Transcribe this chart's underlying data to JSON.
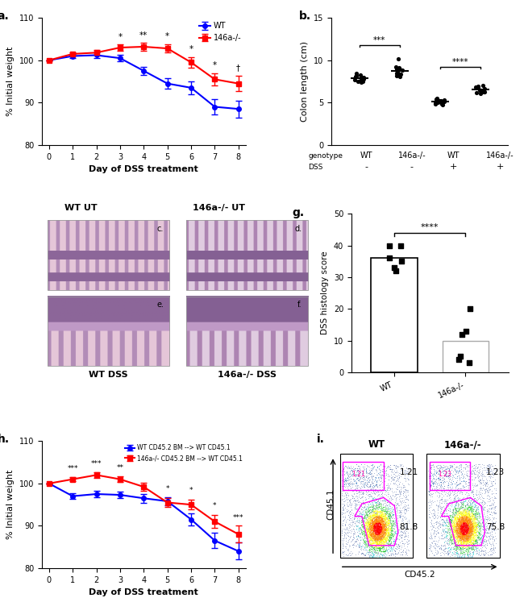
{
  "panel_a": {
    "days": [
      0,
      1,
      2,
      3,
      4,
      5,
      6,
      7,
      8
    ],
    "wt_mean": [
      100,
      101.0,
      101.2,
      100.5,
      97.5,
      94.5,
      93.5,
      89.0,
      88.5
    ],
    "wt_sem": [
      0,
      0.5,
      0.7,
      0.8,
      1.0,
      1.2,
      1.5,
      1.8,
      2.0
    ],
    "ko_mean": [
      100,
      101.5,
      101.8,
      103.0,
      103.2,
      102.8,
      99.5,
      95.5,
      94.5
    ],
    "ko_sem": [
      0,
      0.4,
      0.6,
      0.7,
      0.9,
      1.0,
      1.2,
      1.5,
      1.8
    ],
    "wt_color": "#0000FF",
    "ko_color": "#FF0000",
    "ylabel": "% Initial weight",
    "xlabel": "Day of DSS treatment",
    "ylim": [
      80,
      110
    ],
    "yticks": [
      80,
      90,
      100,
      110
    ],
    "sig_days": [
      3,
      4,
      5,
      6,
      7,
      8
    ],
    "sig_labels": [
      "*",
      "**",
      "*",
      "*",
      "*",
      "†"
    ]
  },
  "panel_b": {
    "wt_minus": [
      7.5,
      7.8,
      8.0,
      7.6,
      8.2,
      8.5,
      8.1,
      7.9,
      8.3,
      7.4,
      7.7,
      8.0,
      7.5
    ],
    "ko_minus": [
      8.2,
      8.8,
      9.0,
      8.5,
      8.9,
      9.1,
      8.7,
      8.4,
      9.2,
      8.6,
      10.2,
      8.3,
      8.8,
      8.5,
      8.1
    ],
    "wt_plus": [
      5.0,
      4.8,
      5.2,
      5.5,
      4.9,
      5.1,
      5.3,
      4.7,
      5.0,
      5.4,
      4.8,
      5.2
    ],
    "ko_plus": [
      6.2,
      6.5,
      6.8,
      6.3,
      6.7,
      6.4,
      6.9,
      6.1,
      6.5,
      6.8,
      6.3,
      7.0,
      6.6
    ],
    "ylabel": "Colon length (cm)",
    "ylim": [
      0,
      15
    ],
    "yticks": [
      0,
      5,
      10,
      15
    ],
    "sig1": "***",
    "sig2": "****"
  },
  "panel_g": {
    "wt_mean": 36,
    "ko_mean": 10,
    "wt_dots": [
      40,
      40,
      36,
      35,
      33,
      32
    ],
    "ko_dots": [
      20,
      13,
      12,
      5,
      4,
      3
    ],
    "ylabel": "DSS histology score",
    "ylim": [
      0,
      50
    ],
    "yticks": [
      0,
      10,
      20,
      30,
      40,
      50
    ],
    "sig": "****"
  },
  "panel_h": {
    "days": [
      0,
      1,
      2,
      3,
      4,
      5,
      6,
      7,
      8
    ],
    "wt_mean": [
      100,
      97.0,
      97.5,
      97.3,
      96.5,
      95.8,
      91.5,
      86.5,
      84.0
    ],
    "wt_sem": [
      0,
      0.6,
      0.7,
      0.8,
      1.0,
      1.0,
      1.5,
      1.8,
      2.0
    ],
    "ko_mean": [
      100,
      101.0,
      102.0,
      101.0,
      99.2,
      95.5,
      95.0,
      91.0,
      88.0
    ],
    "ko_sem": [
      0,
      0.5,
      0.6,
      0.7,
      1.0,
      1.0,
      1.2,
      1.5,
      2.0
    ],
    "wt_color": "#0000FF",
    "ko_color": "#FF0000",
    "ylabel": "% Initial weight",
    "xlabel": "Day of DSS treatment",
    "ylim": [
      80,
      110
    ],
    "yticks": [
      80,
      90,
      100,
      110
    ],
    "sig_days": [
      1,
      2,
      3,
      5,
      6,
      7,
      8
    ],
    "sig_labels": [
      "***",
      "***",
      "**",
      "*",
      "*",
      "*",
      "***"
    ]
  },
  "panel_i": {
    "wt_label": "WT",
    "ko_label": "146a-/-",
    "wt_pct_gate": "1.21",
    "ko_pct_gate": "1.23",
    "wt_pct_main": "81.8",
    "ko_pct_main": "75.8",
    "xlabel": "CD45.2",
    "ylabel": "CD45.1"
  }
}
